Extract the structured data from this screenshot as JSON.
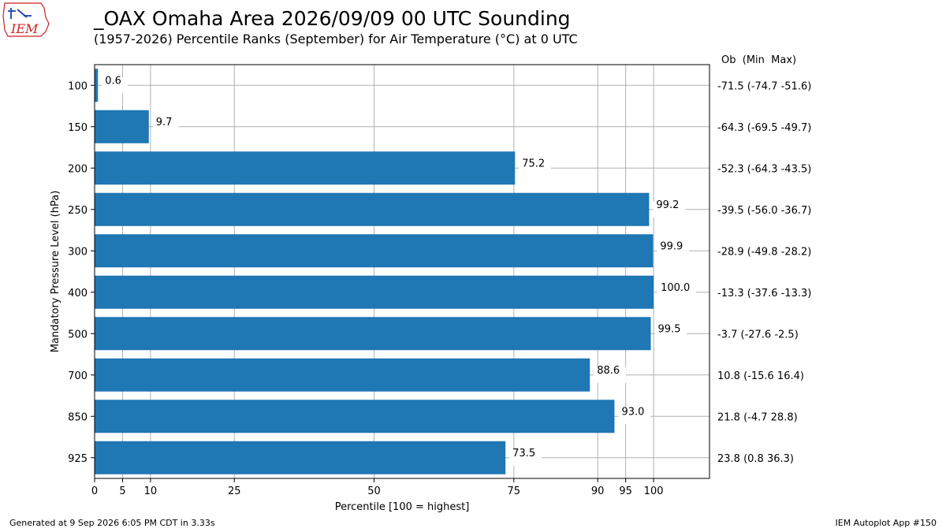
{
  "header": {
    "title": "_OAX Omaha Area  2026/09/09 00 UTC Sounding",
    "subtitle": "(1957-2026) Percentile Ranks (September) for Air Temperature (°C) at 0 UTC",
    "logo_text": "IEM"
  },
  "footer": {
    "generated": "Generated at 9 Sep 2026 6:05 PM CDT in 3.33s",
    "app": "IEM Autoplot App #150"
  },
  "colors": {
    "bar": "#1f77b4",
    "grid": "#b0b0b0",
    "logo": "#cc2222",
    "logo_blue": "#1a3fa8"
  },
  "chart_data": {
    "type": "bar",
    "orientation": "horizontal",
    "xlabel": "Percentile [100 = highest]",
    "ylabel": "Mandatory Pressure Level (hPa)",
    "right_header": "Ob  (Min  Max)",
    "xlim": [
      0,
      110
    ],
    "xticks": [
      0,
      5,
      10,
      25,
      50,
      75,
      90,
      95,
      100
    ],
    "grid": true,
    "categories": [
      "100",
      "150",
      "200",
      "250",
      "300",
      "400",
      "500",
      "700",
      "850",
      "925"
    ],
    "values": [
      0.6,
      9.7,
      75.2,
      99.2,
      99.9,
      100.0,
      99.5,
      88.6,
      93.0,
      73.5
    ],
    "value_labels": [
      "0.6",
      "9.7",
      "75.2",
      "99.2",
      "99.9",
      "100.0",
      "99.5",
      "88.6",
      "93.0",
      "73.5"
    ],
    "right_labels": [
      "-71.5 (-74.7 -51.6)",
      "-64.3 (-69.5 -49.7)",
      "-52.3 (-64.3 -43.5)",
      "-39.5 (-56.0 -36.7)",
      "-28.9 (-49.8 -28.2)",
      "-13.3 (-37.6 -13.3)",
      "-3.7 (-27.6 -2.5)",
      "10.8 (-15.6 16.4)",
      "21.8 (-4.7 28.8)",
      "23.8 (0.8 36.3)"
    ]
  }
}
